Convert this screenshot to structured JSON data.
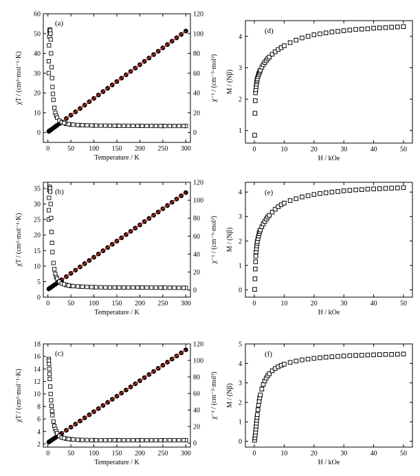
{
  "figure": {
    "panels_left": [
      {
        "id": "a",
        "label": "(a)",
        "xlabel": "Temperature / K",
        "ylabel_left": "χT / (cm³·mol⁻¹·K)",
        "ylabel_right": "χ⁻¹ / (cm⁻³·mol³)",
        "xlim": [
          -10,
          310
        ],
        "xticks": [
          0,
          50,
          100,
          150,
          200,
          250,
          300
        ],
        "ylim_left": [
          -5,
          60
        ],
        "yticks_left": [
          0,
          10,
          20,
          30,
          40,
          50,
          60
        ],
        "ylim_right": [
          -10,
          120
        ],
        "yticks_right": [
          0,
          20,
          40,
          60,
          80,
          100,
          120
        ],
        "chiT_lowT": [
          [
            1.8,
            30.0
          ],
          [
            2,
            36
          ],
          [
            2.5,
            44
          ],
          [
            3,
            48.5
          ],
          [
            3.5,
            51
          ],
          [
            4,
            52
          ],
          [
            4.5,
            52
          ],
          [
            5,
            51.5
          ],
          [
            5.5,
            50
          ],
          [
            6,
            47
          ],
          [
            7,
            40
          ],
          [
            8,
            33
          ],
          [
            9,
            27.5
          ],
          [
            10,
            23
          ],
          [
            11,
            19.5
          ],
          [
            12,
            16.5
          ],
          [
            14,
            12.5
          ],
          [
            16,
            10
          ],
          [
            18,
            8.5
          ],
          [
            20,
            7.5
          ],
          [
            25,
            6
          ],
          [
            30,
            5.2
          ],
          [
            40,
            4.4
          ],
          [
            50,
            4.0
          ],
          [
            70,
            3.7
          ],
          [
            100,
            3.5
          ],
          [
            150,
            3.4
          ],
          [
            200,
            3.35
          ],
          [
            250,
            3.3
          ],
          [
            300,
            3.3
          ]
        ],
        "chiT_sample_T": [
          35,
          45,
          55,
          65,
          75,
          85,
          95,
          105,
          115,
          125,
          135,
          145,
          155,
          165,
          175,
          185,
          195,
          205,
          215,
          225,
          235,
          245,
          255,
          265,
          275,
          285,
          295
        ],
        "inv_chi_T": [
          2,
          5,
          8,
          12,
          16,
          20,
          25,
          30,
          40,
          50,
          60,
          70,
          80,
          90,
          100,
          110,
          120,
          130,
          140,
          150,
          160,
          170,
          180,
          190,
          200,
          210,
          220,
          230,
          240,
          250,
          260,
          270,
          280,
          290,
          300
        ],
        "inv_chi_slope": 0.34,
        "inv_chi_intercept": 0.5,
        "fit_range": [
          30,
          300
        ]
      },
      {
        "id": "b",
        "label": "(b)",
        "xlabel": "Temperature / K",
        "ylabel_left": "χT / (cm³·mol⁻¹·K)",
        "ylabel_right": "χ⁻¹ / (cm⁻³·mol³)",
        "xlim": [
          -10,
          310
        ],
        "xticks": [
          0,
          50,
          100,
          150,
          200,
          250,
          300
        ],
        "ylim_left": [
          0,
          37
        ],
        "yticks_left": [
          0,
          5,
          10,
          15,
          20,
          25,
          30,
          35
        ],
        "ylim_right": [
          -8,
          120
        ],
        "yticks_right": [
          0,
          20,
          40,
          60,
          80,
          100,
          120
        ],
        "chiT_lowT": [
          [
            1.8,
            25.0
          ],
          [
            2,
            28
          ],
          [
            2.5,
            32
          ],
          [
            3,
            34.5
          ],
          [
            3.5,
            35.5
          ],
          [
            4,
            35.5
          ],
          [
            4.5,
            35
          ],
          [
            5,
            34
          ],
          [
            6,
            30
          ],
          [
            7,
            25.5
          ],
          [
            8,
            21
          ],
          [
            9,
            17.5
          ],
          [
            10,
            14.5
          ],
          [
            12,
            11
          ],
          [
            14,
            9
          ],
          [
            16,
            7.5
          ],
          [
            18,
            6.5
          ],
          [
            20,
            6
          ],
          [
            25,
            5
          ],
          [
            30,
            4.4
          ],
          [
            40,
            3.9
          ],
          [
            50,
            3.6
          ],
          [
            70,
            3.4
          ],
          [
            100,
            3.2
          ],
          [
            150,
            3.1
          ],
          [
            200,
            3.1
          ],
          [
            250,
            3.05
          ],
          [
            300,
            3.0
          ]
        ],
        "chiT_sample_T": [
          35,
          45,
          55,
          65,
          75,
          85,
          95,
          105,
          115,
          125,
          135,
          145,
          155,
          165,
          175,
          185,
          195,
          205,
          215,
          225,
          235,
          245,
          255,
          265,
          275,
          285,
          295
        ],
        "inv_chi_T": [
          2,
          5,
          8,
          12,
          16,
          20,
          25,
          30,
          40,
          50,
          60,
          70,
          80,
          90,
          100,
          110,
          120,
          130,
          140,
          150,
          160,
          170,
          180,
          190,
          200,
          210,
          220,
          230,
          240,
          250,
          260,
          270,
          280,
          290,
          300
        ],
        "inv_chi_slope": 0.36,
        "inv_chi_intercept": 0.5,
        "fit_range": [
          30,
          300
        ]
      },
      {
        "id": "c",
        "label": "(c)",
        "xlabel": "Temperature / K",
        "ylabel_left": "χT / (cm³·mol⁻¹·K)",
        "ylabel_right": "χ⁻¹ / (cm⁻³·mol³)",
        "xlim": [
          -10,
          310
        ],
        "xticks": [
          0,
          50,
          100,
          150,
          200,
          250,
          300
        ],
        "ylim_left": [
          1.5,
          18
        ],
        "yticks_left": [
          2,
          4,
          6,
          8,
          10,
          12,
          14,
          16,
          18
        ],
        "ylim_right": [
          -5,
          120
        ],
        "yticks_right": [
          0,
          20,
          40,
          60,
          80,
          100,
          120
        ],
        "chiT_lowT": [
          [
            1.8,
            15.6
          ],
          [
            2,
            15.3
          ],
          [
            2.5,
            14.8
          ],
          [
            3,
            14.0
          ],
          [
            3.5,
            13.2
          ],
          [
            4,
            12.4
          ],
          [
            5,
            11.2
          ],
          [
            6,
            10.0
          ],
          [
            7,
            9.0
          ],
          [
            8,
            8.1
          ],
          [
            9,
            7.3
          ],
          [
            10,
            6.6
          ],
          [
            12,
            5.6
          ],
          [
            14,
            4.9
          ],
          [
            16,
            4.4
          ],
          [
            18,
            4.0
          ],
          [
            20,
            3.7
          ],
          [
            25,
            3.3
          ],
          [
            30,
            3.05
          ],
          [
            40,
            2.85
          ],
          [
            50,
            2.75
          ],
          [
            70,
            2.65
          ],
          [
            100,
            2.6
          ],
          [
            150,
            2.6
          ],
          [
            200,
            2.6
          ],
          [
            250,
            2.6
          ],
          [
            300,
            2.6
          ]
        ],
        "chiT_sample_T": [
          35,
          45,
          55,
          65,
          75,
          85,
          95,
          105,
          115,
          125,
          135,
          145,
          155,
          165,
          175,
          185,
          195,
          205,
          215,
          225,
          235,
          245,
          255,
          265,
          275,
          285,
          295
        ],
        "inv_chi_T": [
          2,
          5,
          8,
          12,
          16,
          20,
          25,
          30,
          40,
          50,
          60,
          70,
          80,
          90,
          100,
          110,
          120,
          130,
          140,
          150,
          160,
          170,
          180,
          190,
          200,
          210,
          220,
          230,
          240,
          250,
          260,
          270,
          280,
          290,
          300
        ],
        "inv_chi_slope": 0.375,
        "inv_chi_intercept": 0.4,
        "fit_range": [
          30,
          300
        ]
      }
    ],
    "panels_right": [
      {
        "id": "d",
        "label": "(d)",
        "xlabel": "H / kOe",
        "ylabel": "M / (Nβ)",
        "xlim": [
          -3,
          53
        ],
        "xticks": [
          0,
          10,
          20,
          30,
          40,
          50
        ],
        "ylim": [
          0.6,
          4.5
        ],
        "yticks": [
          1,
          2,
          3,
          4
        ],
        "H": [
          0.1,
          0.2,
          0.3,
          0.4,
          0.5,
          0.6,
          0.7,
          0.8,
          0.9,
          1.0,
          1.2,
          1.4,
          1.6,
          1.8,
          2.0,
          2.5,
          3,
          3.5,
          4,
          4.5,
          5,
          6,
          7,
          8,
          9,
          10,
          12,
          14,
          16,
          18,
          20,
          22,
          24,
          26,
          28,
          30,
          32,
          34,
          36,
          38,
          40,
          42,
          44,
          46,
          48,
          50
        ],
        "M": [
          0.85,
          1.55,
          1.95,
          2.2,
          2.3,
          2.4,
          2.48,
          2.55,
          2.6,
          2.65,
          2.72,
          2.78,
          2.83,
          2.88,
          2.92,
          3.02,
          3.1,
          3.17,
          3.23,
          3.29,
          3.34,
          3.43,
          3.51,
          3.58,
          3.64,
          3.7,
          3.8,
          3.88,
          3.95,
          4.0,
          4.05,
          4.08,
          4.11,
          4.14,
          4.16,
          4.18,
          4.2,
          4.22,
          4.23,
          4.24,
          4.26,
          4.27,
          4.28,
          4.29,
          4.3,
          4.31
        ]
      },
      {
        "id": "e",
        "label": "(e)",
        "xlabel": "H / kOe",
        "ylabel": "M / (Nβ)",
        "xlim": [
          -3,
          53
        ],
        "xticks": [
          0,
          10,
          20,
          30,
          40,
          50
        ],
        "ylim": [
          -0.3,
          4.4
        ],
        "yticks": [
          0,
          1,
          2,
          3,
          4
        ],
        "H": [
          0.1,
          0.2,
          0.3,
          0.4,
          0.5,
          0.6,
          0.7,
          0.8,
          0.9,
          1.0,
          1.2,
          1.4,
          1.6,
          1.8,
          2.0,
          2.5,
          3,
          3.5,
          4,
          4.5,
          5,
          6,
          7,
          8,
          9,
          10,
          12,
          14,
          16,
          18,
          20,
          22,
          24,
          26,
          28,
          30,
          32,
          34,
          36,
          38,
          40,
          42,
          44,
          46,
          48,
          50
        ],
        "M": [
          0.02,
          0.45,
          0.85,
          1.15,
          1.38,
          1.55,
          1.68,
          1.8,
          1.9,
          1.98,
          2.1,
          2.2,
          2.3,
          2.38,
          2.45,
          2.58,
          2.7,
          2.8,
          2.9,
          2.98,
          3.05,
          3.18,
          3.3,
          3.4,
          3.48,
          3.55,
          3.65,
          3.73,
          3.8,
          3.85,
          3.9,
          3.94,
          3.97,
          4.0,
          4.02,
          4.05,
          4.07,
          4.09,
          4.1,
          4.12,
          4.13,
          4.14,
          4.15,
          4.16,
          4.17,
          4.18
        ]
      },
      {
        "id": "f",
        "label": "(f)",
        "xlabel": "H / kOe",
        "ylabel": "M / (Nβ)",
        "xlim": [
          -3,
          53
        ],
        "xticks": [
          0,
          10,
          20,
          30,
          40,
          50
        ],
        "ylim": [
          -0.3,
          5
        ],
        "yticks": [
          0,
          1,
          2,
          3,
          4,
          5
        ],
        "H": [
          0.1,
          0.2,
          0.3,
          0.4,
          0.5,
          0.6,
          0.7,
          0.8,
          0.9,
          1.0,
          1.2,
          1.4,
          1.6,
          1.8,
          2.0,
          2.5,
          3,
          3.5,
          4,
          4.5,
          5,
          6,
          7,
          8,
          9,
          10,
          12,
          14,
          16,
          18,
          20,
          22,
          24,
          26,
          28,
          30,
          32,
          34,
          36,
          38,
          40,
          42,
          44,
          46,
          48,
          50
        ],
        "M": [
          0.05,
          0.18,
          0.32,
          0.47,
          0.62,
          0.78,
          0.93,
          1.08,
          1.23,
          1.37,
          1.62,
          1.85,
          2.05,
          2.23,
          2.38,
          2.68,
          2.92,
          3.1,
          3.25,
          3.37,
          3.47,
          3.62,
          3.74,
          3.83,
          3.9,
          3.96,
          4.05,
          4.12,
          4.18,
          4.22,
          4.26,
          4.29,
          4.32,
          4.34,
          4.36,
          4.38,
          4.4,
          4.41,
          4.42,
          4.43,
          4.44,
          4.45,
          4.46,
          4.46,
          4.47,
          4.48
        ]
      }
    ]
  }
}
